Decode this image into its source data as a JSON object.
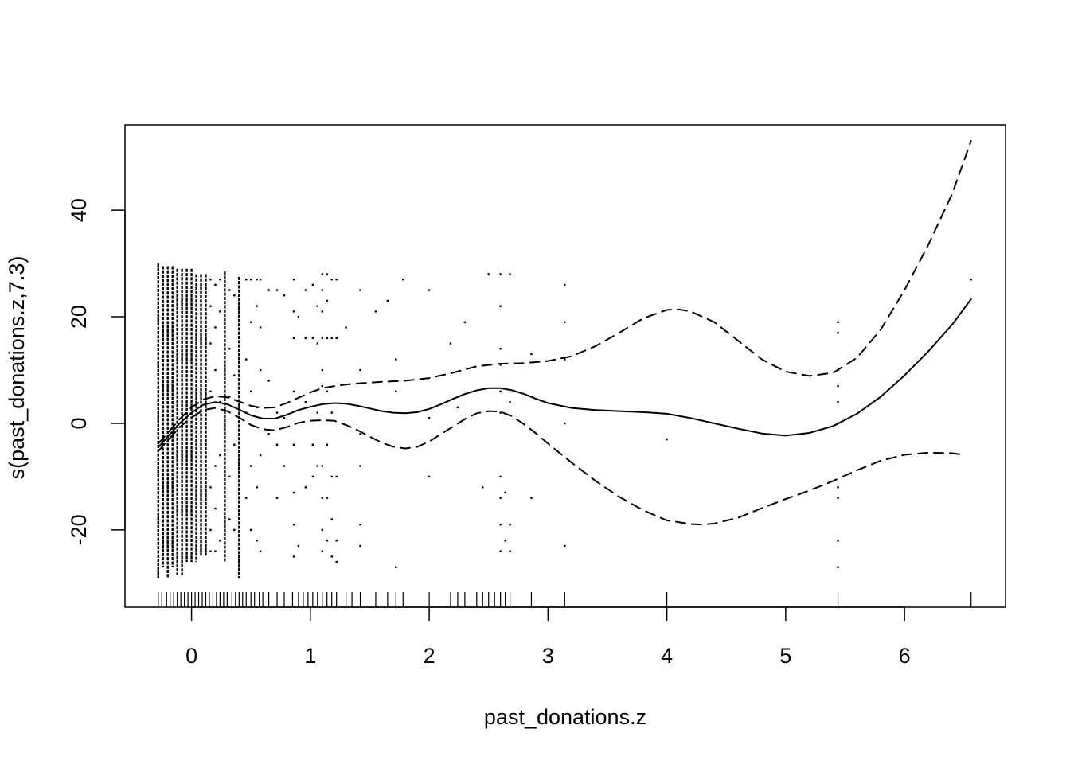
{
  "chart_data": {
    "type": "line",
    "title": "",
    "xlabel": "past_donations.z",
    "ylabel": "s(past_donations.z,7.3)",
    "xlim": [
      -0.56,
      6.85
    ],
    "ylim": [
      -34.5,
      56.0
    ],
    "x_ticks": [
      0,
      1,
      2,
      3,
      4,
      5,
      6
    ],
    "y_ticks": [
      -20,
      0,
      20,
      40
    ],
    "x_tick_labels": [
      "0",
      "1",
      "2",
      "3",
      "4",
      "5",
      "6"
    ],
    "y_tick_labels": [
      "-20",
      "0",
      "20",
      "40"
    ],
    "grid": false,
    "legend": "none",
    "series": [
      {
        "style": "solid",
        "x": [
          -0.28,
          -0.2,
          -0.1,
          0.0,
          0.1,
          0.2,
          0.3,
          0.4,
          0.5,
          0.6,
          0.7,
          0.8,
          0.9,
          1.0,
          1.1,
          1.2,
          1.3,
          1.4,
          1.5,
          1.6,
          1.7,
          1.8,
          1.9,
          2.0,
          2.1,
          2.2,
          2.3,
          2.4,
          2.5,
          2.6,
          2.7,
          2.8,
          2.9,
          3.0,
          3.2,
          3.4,
          3.6,
          3.8,
          4.0,
          4.2,
          4.4,
          4.6,
          4.8,
          5.0,
          5.2,
          5.4,
          5.6,
          5.8,
          6.0,
          6.2,
          6.4,
          6.56
        ],
        "y": [
          -4.5,
          -2.5,
          0.0,
          2.0,
          3.5,
          4.0,
          3.6,
          2.6,
          1.5,
          0.9,
          0.9,
          1.6,
          2.5,
          3.1,
          3.6,
          3.8,
          3.7,
          3.3,
          2.8,
          2.3,
          2.0,
          1.9,
          2.1,
          2.7,
          3.6,
          4.6,
          5.5,
          6.2,
          6.6,
          6.6,
          6.2,
          5.5,
          4.6,
          3.8,
          2.9,
          2.5,
          2.3,
          2.1,
          1.8,
          1.0,
          0.0,
          -1.0,
          -1.9,
          -2.3,
          -1.8,
          -0.5,
          1.8,
          5.0,
          9.0,
          13.5,
          18.5,
          23.3
        ]
      },
      {
        "style": "dashed",
        "x": [
          -0.28,
          -0.2,
          -0.1,
          0.0,
          0.1,
          0.2,
          0.3,
          0.4,
          0.5,
          0.6,
          0.7,
          0.8,
          0.9,
          1.0,
          1.1,
          1.2,
          1.3,
          1.4,
          1.6,
          1.8,
          2.0,
          2.2,
          2.4,
          2.6,
          2.8,
          3.0,
          3.2,
          3.4,
          3.6,
          3.8,
          4.0,
          4.1,
          4.2,
          4.4,
          4.6,
          4.8,
          5.0,
          5.2,
          5.4,
          5.6,
          5.8,
          6.0,
          6.2,
          6.4,
          6.56
        ],
        "y": [
          -3.8,
          -1.8,
          0.8,
          3.0,
          4.5,
          5.1,
          4.9,
          4.1,
          3.3,
          2.9,
          3.0,
          3.8,
          4.8,
          5.8,
          6.6,
          7.0,
          7.3,
          7.5,
          7.8,
          8.0,
          8.5,
          9.5,
          10.7,
          11.2,
          11.3,
          11.7,
          12.6,
          14.5,
          17.0,
          19.7,
          21.3,
          21.4,
          21.0,
          19.0,
          15.5,
          12.0,
          9.7,
          8.9,
          9.5,
          12.3,
          17.6,
          25.0,
          33.5,
          43.0,
          53.0
        ]
      },
      {
        "style": "dashed",
        "x": [
          -0.28,
          -0.2,
          -0.1,
          0.0,
          0.1,
          0.2,
          0.3,
          0.4,
          0.5,
          0.6,
          0.7,
          0.8,
          0.9,
          1.0,
          1.1,
          1.2,
          1.3,
          1.4,
          1.5,
          1.6,
          1.7,
          1.8,
          1.9,
          2.0,
          2.1,
          2.2,
          2.3,
          2.4,
          2.5,
          2.6,
          2.7,
          2.8,
          2.9,
          3.0,
          3.2,
          3.4,
          3.6,
          3.8,
          4.0,
          4.2,
          4.3,
          4.4,
          4.6,
          4.8,
          5.0,
          5.2,
          5.4,
          5.6,
          5.8,
          6.0,
          6.2,
          6.4,
          6.5
        ],
        "y": [
          -5.2,
          -3.2,
          -0.7,
          1.1,
          2.5,
          2.9,
          2.3,
          1.1,
          -0.3,
          -1.1,
          -1.3,
          -0.7,
          0.1,
          0.5,
          0.6,
          0.5,
          -0.3,
          -1.3,
          -2.5,
          -3.6,
          -4.4,
          -4.7,
          -4.4,
          -3.4,
          -2.0,
          -0.6,
          0.8,
          1.9,
          2.3,
          2.2,
          1.3,
          -0.2,
          -1.9,
          -3.8,
          -7.4,
          -10.8,
          -13.8,
          -16.3,
          -18.2,
          -18.9,
          -19.0,
          -18.8,
          -17.7,
          -15.9,
          -14.2,
          -12.6,
          -10.8,
          -8.8,
          -7.0,
          -5.9,
          -5.5,
          -5.6,
          -5.9
        ]
      }
    ],
    "rug_x": [
      -0.28,
      -0.25,
      -0.21,
      -0.18,
      -0.15,
      -0.12,
      -0.09,
      -0.06,
      -0.03,
      0.0,
      0.03,
      0.06,
      0.09,
      0.12,
      0.15,
      0.18,
      0.21,
      0.24,
      0.27,
      0.3,
      0.34,
      0.37,
      0.4,
      0.43,
      0.46,
      0.5,
      0.53,
      0.57,
      0.6,
      0.65,
      0.72,
      0.78,
      0.85,
      0.9,
      0.94,
      0.98,
      1.02,
      1.06,
      1.1,
      1.14,
      1.18,
      1.22,
      1.3,
      1.35,
      1.42,
      1.55,
      1.65,
      1.72,
      1.78,
      2.0,
      2.18,
      2.24,
      2.3,
      2.4,
      2.45,
      2.5,
      2.55,
      2.6,
      2.64,
      2.68,
      2.86,
      3.14,
      4.0,
      5.44,
      6.56
    ],
    "scatter": {
      "columns": [
        {
          "x": -0.28,
          "y_min": -29,
          "y_max": 30
        },
        {
          "x": -0.24,
          "y_min": -27,
          "y_max": 29.5
        },
        {
          "x": -0.2,
          "y_min": -29,
          "y_max": 29.5
        },
        {
          "x": -0.16,
          "y_min": -27,
          "y_max": 29.5
        },
        {
          "x": -0.12,
          "y_min": -28.5,
          "y_max": 29
        },
        {
          "x": -0.08,
          "y_min": -28.5,
          "y_max": 29
        },
        {
          "x": -0.04,
          "y_min": -26,
          "y_max": 29
        },
        {
          "x": 0.0,
          "y_min": -26,
          "y_max": 29
        },
        {
          "x": 0.04,
          "y_min": -26,
          "y_max": 28
        },
        {
          "x": 0.08,
          "y_min": -25,
          "y_max": 28
        },
        {
          "x": 0.12,
          "y_min": -25,
          "y_max": 28
        },
        {
          "x": 0.28,
          "y_min": -26,
          "y_max": 28.5
        },
        {
          "x": 0.4,
          "y_min": -29,
          "y_max": 27.5
        }
      ],
      "dots": [
        [
          0.16,
          -24
        ],
        [
          0.16,
          -20
        ],
        [
          0.16,
          -12
        ],
        [
          0.16,
          6
        ],
        [
          0.16,
          15
        ],
        [
          0.16,
          22
        ],
        [
          0.16,
          27
        ],
        [
          0.2,
          -24
        ],
        [
          0.2,
          -16
        ],
        [
          0.2,
          -8
        ],
        [
          0.2,
          10
        ],
        [
          0.2,
          18
        ],
        [
          0.2,
          26
        ],
        [
          0.24,
          -22
        ],
        [
          0.24,
          -6
        ],
        [
          0.24,
          4
        ],
        [
          0.24,
          21
        ],
        [
          0.24,
          27
        ],
        [
          0.32,
          -18
        ],
        [
          0.32,
          -10
        ],
        [
          0.32,
          5
        ],
        [
          0.32,
          14
        ],
        [
          0.32,
          25
        ],
        [
          0.36,
          -20
        ],
        [
          0.36,
          -4
        ],
        [
          0.36,
          9
        ],
        [
          0.36,
          24
        ],
        [
          0.46,
          -14
        ],
        [
          0.46,
          2
        ],
        [
          0.46,
          12
        ],
        [
          0.46,
          27
        ],
        [
          0.5,
          -20
        ],
        [
          0.5,
          -8
        ],
        [
          0.5,
          6
        ],
        [
          0.5,
          19
        ],
        [
          0.5,
          27
        ],
        [
          0.55,
          -22
        ],
        [
          0.55,
          -12
        ],
        [
          0.55,
          3
        ],
        [
          0.55,
          22
        ],
        [
          0.55,
          27
        ],
        [
          0.58,
          -24
        ],
        [
          0.58,
          -6
        ],
        [
          0.58,
          10
        ],
        [
          0.58,
          18
        ],
        [
          0.58,
          27
        ],
        [
          0.65,
          -2
        ],
        [
          0.65,
          8
        ],
        [
          0.65,
          25
        ],
        [
          0.72,
          -14
        ],
        [
          0.72,
          -4
        ],
        [
          0.72,
          2
        ],
        [
          0.72,
          25
        ],
        [
          0.78,
          -8
        ],
        [
          0.78,
          1
        ],
        [
          0.78,
          24
        ],
        [
          0.86,
          -25
        ],
        [
          0.86,
          -19
        ],
        [
          0.86,
          -13
        ],
        [
          0.86,
          -4
        ],
        [
          0.86,
          6
        ],
        [
          0.86,
          16
        ],
        [
          0.86,
          21
        ],
        [
          0.86,
          27
        ],
        [
          0.9,
          -23
        ],
        [
          0.9,
          20
        ],
        [
          0.96,
          -12
        ],
        [
          0.96,
          4
        ],
        [
          0.96,
          16
        ],
        [
          0.96,
          25
        ],
        [
          1.02,
          -10
        ],
        [
          1.02,
          -4
        ],
        [
          1.02,
          16
        ],
        [
          1.02,
          26
        ],
        [
          1.06,
          -8
        ],
        [
          1.06,
          2
        ],
        [
          1.06,
          15
        ],
        [
          1.06,
          22
        ],
        [
          1.1,
          -24
        ],
        [
          1.1,
          -20
        ],
        [
          1.1,
          -14
        ],
        [
          1.1,
          -8
        ],
        [
          1.1,
          7
        ],
        [
          1.1,
          10
        ],
        [
          1.1,
          16
        ],
        [
          1.1,
          21
        ],
        [
          1.1,
          25
        ],
        [
          1.1,
          28
        ],
        [
          1.14,
          -22
        ],
        [
          1.14,
          -14
        ],
        [
          1.14,
          -4
        ],
        [
          1.14,
          6
        ],
        [
          1.14,
          16
        ],
        [
          1.14,
          23
        ],
        [
          1.14,
          28
        ],
        [
          1.18,
          -25
        ],
        [
          1.18,
          -18
        ],
        [
          1.18,
          -10
        ],
        [
          1.18,
          2
        ],
        [
          1.18,
          16
        ],
        [
          1.18,
          27
        ],
        [
          1.22,
          -26
        ],
        [
          1.22,
          -22
        ],
        [
          1.22,
          -10
        ],
        [
          1.22,
          16
        ],
        [
          1.22,
          27
        ],
        [
          1.3,
          18
        ],
        [
          1.42,
          -23
        ],
        [
          1.42,
          -19
        ],
        [
          1.42,
          -8
        ],
        [
          1.42,
          -2
        ],
        [
          1.42,
          10
        ],
        [
          1.42,
          25
        ],
        [
          1.55,
          21
        ],
        [
          1.65,
          23
        ],
        [
          1.72,
          -27
        ],
        [
          1.72,
          6
        ],
        [
          1.72,
          12
        ],
        [
          1.78,
          27
        ],
        [
          2.0,
          -10
        ],
        [
          2.0,
          1
        ],
        [
          2.0,
          25
        ],
        [
          2.18,
          15
        ],
        [
          2.24,
          3
        ],
        [
          2.3,
          19
        ],
        [
          2.45,
          -12
        ],
        [
          2.5,
          28
        ],
        [
          2.6,
          -24
        ],
        [
          2.6,
          -19
        ],
        [
          2.6,
          -14
        ],
        [
          2.6,
          -10
        ],
        [
          2.6,
          2
        ],
        [
          2.6,
          6
        ],
        [
          2.6,
          11
        ],
        [
          2.6,
          14
        ],
        [
          2.6,
          22
        ],
        [
          2.6,
          28
        ],
        [
          2.64,
          -22
        ],
        [
          2.64,
          -13
        ],
        [
          2.68,
          -24
        ],
        [
          2.68,
          -19
        ],
        [
          2.68,
          4
        ],
        [
          2.68,
          28
        ],
        [
          2.86,
          -14
        ],
        [
          2.86,
          13
        ],
        [
          3.14,
          -23
        ],
        [
          3.14,
          0
        ],
        [
          3.14,
          12
        ],
        [
          3.14,
          19
        ],
        [
          3.14,
          26
        ],
        [
          4.0,
          -3
        ],
        [
          5.44,
          -27
        ],
        [
          5.44,
          -22
        ],
        [
          5.44,
          -14
        ],
        [
          5.44,
          -12
        ],
        [
          5.44,
          0
        ],
        [
          5.44,
          4
        ],
        [
          5.44,
          7
        ],
        [
          5.44,
          10
        ],
        [
          5.44,
          17
        ],
        [
          5.44,
          19
        ],
        [
          6.56,
          27
        ]
      ]
    }
  }
}
